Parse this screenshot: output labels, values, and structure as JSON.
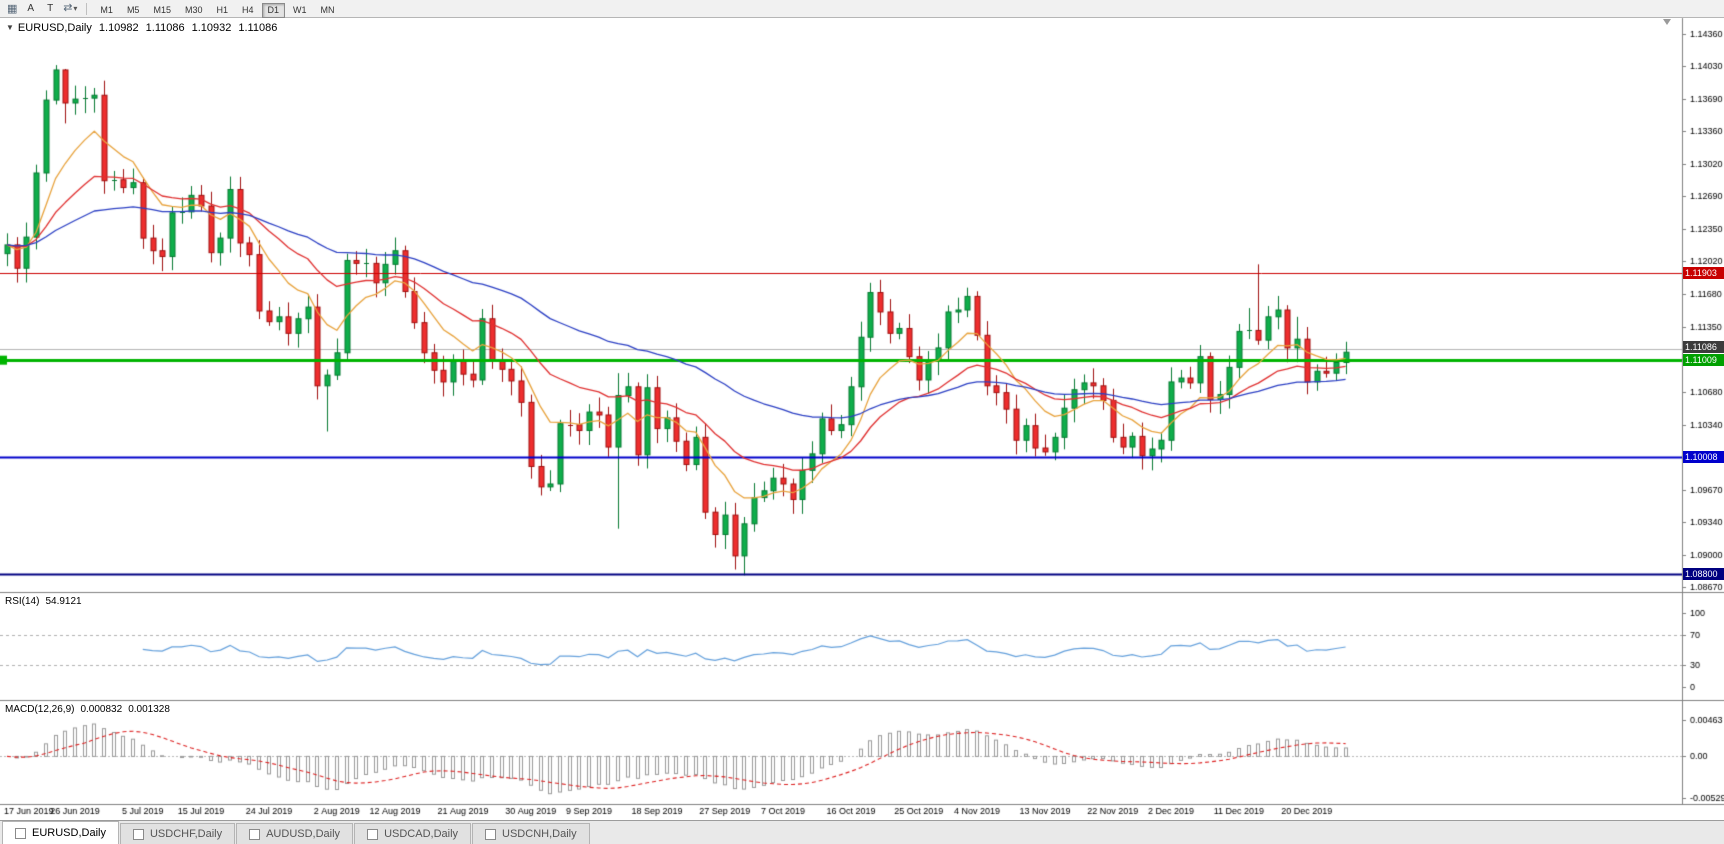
{
  "toolbar": {
    "tools": [
      {
        "name": "charts-grid",
        "glyph": "▦"
      },
      {
        "name": "cursor",
        "label": "A"
      },
      {
        "name": "text",
        "label": "T"
      },
      {
        "name": "objects",
        "glyph": "⇄",
        "caret": "▾"
      }
    ],
    "timeframes": [
      "M1",
      "M5",
      "M15",
      "M30",
      "H1",
      "H4",
      "D1",
      "W1",
      "MN"
    ],
    "active_timeframe": "D1"
  },
  "chart_header": {
    "dropdown_glyph": "▼",
    "symbol": "EURUSD,Daily",
    "open": "1.10982",
    "high": "1.11086",
    "low": "1.10932",
    "close": "1.11086"
  },
  "price_axis": {
    "ticks": [
      "1.14360",
      "1.14030",
      "1.13690",
      "1.13360",
      "1.13020",
      "1.12690",
      "1.12350",
      "1.12020",
      "1.11680",
      "1.11350",
      "1.11020",
      "1.10680",
      "1.10340",
      "1.10000",
      "1.09670",
      "1.09340",
      "1.09000",
      "1.08670"
    ],
    "tags": [
      {
        "name": "resistance",
        "text": "1.11903",
        "price": 1.11903,
        "color": "#c80000"
      },
      {
        "name": "bid",
        "text": "1.11086",
        "price": 1.11086,
        "color": "#3c3c3c"
      },
      {
        "name": "support",
        "text": "1.11009",
        "price": 1.11009,
        "color": "#00a000"
      },
      {
        "name": "level1",
        "text": "1.10008",
        "price": 1.10008,
        "color": "#0000cc"
      },
      {
        "name": "level2",
        "text": "1.08800",
        "price": 1.088,
        "color": "#000080"
      }
    ]
  },
  "chart_data": {
    "type": "candlestick",
    "symbol": "EURUSD",
    "timeframe": "Daily",
    "first_open": 1.121,
    "closes": [
      1.1219,
      1.1195,
      1.1227,
      1.1293,
      1.1368,
      1.1399,
      1.1365,
      1.1369,
      1.137,
      1.1373,
      1.1285,
      1.1286,
      1.1278,
      1.1283,
      1.1226,
      1.1213,
      1.1207,
      1.1252,
      1.1253,
      1.127,
      1.1259,
      1.1211,
      1.1226,
      1.1276,
      1.1221,
      1.1209,
      1.1151,
      1.114,
      1.1145,
      1.1128,
      1.1143,
      1.1155,
      1.1074,
      1.1085,
      1.1108,
      1.1203,
      1.12,
      1.12,
      1.118,
      1.1199,
      1.1213,
      1.1171,
      1.1139,
      1.1108,
      1.109,
      1.1078,
      1.1099,
      1.1086,
      1.108,
      1.1143,
      1.1101,
      1.1091,
      1.1079,
      1.1057,
      1.0991,
      1.097,
      1.0973,
      1.1035,
      1.1034,
      1.1028,
      1.1047,
      1.1044,
      1.1011,
      1.1064,
      1.1073,
      1.1003,
      1.1072,
      1.103,
      1.1041,
      1.1017,
      1.0993,
      1.1021,
      1.0944,
      1.0921,
      1.0941,
      1.0899,
      1.0932,
      1.0959,
      1.0966,
      1.0979,
      1.0973,
      1.0957,
      1.0987,
      1.1004,
      1.104,
      1.1028,
      1.1034,
      1.1073,
      1.1124,
      1.117,
      1.115,
      1.1128,
      1.1133,
      1.1104,
      1.108,
      1.11,
      1.1113,
      1.115,
      1.1152,
      1.1166,
      1.1126,
      1.1074,
      1.1067,
      1.105,
      1.1018,
      1.1033,
      1.101,
      1.1006,
      1.1021,
      1.1051,
      1.107,
      1.1077,
      1.1074,
      1.1059,
      1.1021,
      1.1011,
      1.1022,
      1.1002,
      1.1009,
      1.1018,
      1.1078,
      1.1082,
      1.1077,
      1.1104,
      1.106,
      1.1065,
      1.1093,
      1.113,
      1.1131,
      1.1121,
      1.1145,
      1.1152,
      1.1113,
      1.1122,
      1.1078,
      1.1089,
      1.1087,
      1.1098,
      1.11086
    ],
    "default_wick": 0.0012,
    "wick_overrides": {
      "4": {
        "h": 1.1378
      },
      "5": {
        "h": 1.1404
      },
      "6": {
        "h": 1.14,
        "l": 1.1344
      },
      "32": {
        "l": 1.106
      },
      "33": {
        "l": 1.1027
      },
      "35": {
        "h": 1.121
      },
      "49": {
        "h": 1.1153
      },
      "63": {
        "h": 1.1087,
        "l": 1.0927
      },
      "72": {
        "l": 1.0937
      },
      "75": {
        "l": 1.0885
      },
      "76": {
        "l": 1.0879
      },
      "88": {
        "h": 1.114
      },
      "89": {
        "h": 1.118
      },
      "99": {
        "h": 1.1175
      },
      "123": {
        "h": 1.1116
      },
      "128": {
        "h": 1.1154
      },
      "129": {
        "h": 1.1199
      },
      "133": {
        "h": 1.1145
      }
    },
    "x_labels": [
      {
        "t": "17 Jun 2019",
        "i": 0
      },
      {
        "t": "26 Jun 2019",
        "i": 7
      },
      {
        "t": "5 Jul 2019",
        "i": 14
      },
      {
        "t": "15 Jul 2019",
        "i": 20
      },
      {
        "t": "24 Jul 2019",
        "i": 27
      },
      {
        "t": "2 Aug 2019",
        "i": 34
      },
      {
        "t": "12 Aug 2019",
        "i": 40
      },
      {
        "t": "21 Aug 2019",
        "i": 47
      },
      {
        "t": "30 Aug 2019",
        "i": 54
      },
      {
        "t": "9 Sep 2019",
        "i": 60
      },
      {
        "t": "18 Sep 2019",
        "i": 67
      },
      {
        "t": "27 Sep 2019",
        "i": 74
      },
      {
        "t": "7 Oct 2019",
        "i": 80
      },
      {
        "t": "16 Oct 2019",
        "i": 87
      },
      {
        "t": "25 Oct 2019",
        "i": 94
      },
      {
        "t": "4 Nov 2019",
        "i": 100
      },
      {
        "t": "13 Nov 2019",
        "i": 107
      },
      {
        "t": "22 Nov 2019",
        "i": 114
      },
      {
        "t": "2 Dec 2019",
        "i": 120
      },
      {
        "t": "11 Dec 2019",
        "i": 127
      },
      {
        "t": "20 Dec 2019",
        "i": 134
      }
    ],
    "price_lines": [
      {
        "price": 1.1112,
        "color": "#b4b4b4",
        "width": 1
      },
      {
        "price": 1.11903,
        "color": "#cc0000",
        "width": 1
      },
      {
        "price": 1.11009,
        "color": "#00b400",
        "width": 3
      },
      {
        "price": 1.10008,
        "color": "#0000cc",
        "width": 2
      },
      {
        "price": 1.088,
        "color": "#000082",
        "width": 2
      }
    ],
    "current_price": 1.11086,
    "candle_colors": {
      "up_fill": "#0fae4b",
      "up_stroke": "#067a32",
      "down_fill": "#ee2e2e",
      "down_stroke": "#a01010"
    },
    "moving_averages": [
      {
        "period": 9,
        "color": "#e8a33d"
      },
      {
        "period": 21,
        "color": "#e03030"
      },
      {
        "period": 50,
        "color": "#2b3fc4"
      }
    ],
    "rsi": {
      "label": "RSI(14)",
      "value": "54.9121",
      "period": 14,
      "levels": [
        70,
        30
      ],
      "scale": [
        "100",
        "70",
        "30",
        "0"
      ],
      "scale_values": [
        100,
        70,
        30,
        0
      ],
      "color": "#64a0dc"
    },
    "macd": {
      "label": "MACD(12,26,9)",
      "value_main": "0.000832",
      "value_signal": "0.001328",
      "fast": 12,
      "slow": 26,
      "signal": 9,
      "scale": [
        "0.00463",
        "0.00",
        "-0.00529"
      ],
      "scale_values": [
        0.00463,
        0,
        -0.00529
      ],
      "hist_color": "#9a9a9a",
      "signal_color": "#dd2222"
    }
  },
  "tabs": [
    {
      "label": "EURUSD,Daily",
      "active": true
    },
    {
      "label": "USDCHF,Daily",
      "active": false
    },
    {
      "label": "AUDUSD,Daily",
      "active": false
    },
    {
      "label": "USDCAD,Daily",
      "active": false
    },
    {
      "label": "USDCNH,Daily",
      "active": false
    }
  ]
}
